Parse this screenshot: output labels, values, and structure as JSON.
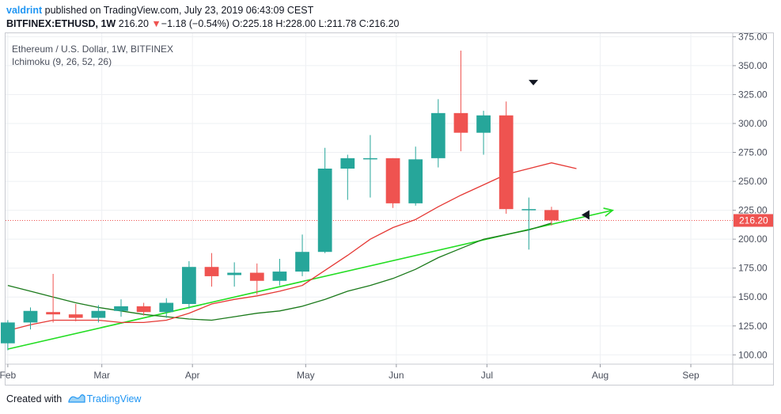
{
  "header": {
    "user": "valdrint",
    "published_text": "published on TradingView.com, July 23, 2019 06:43:09 CEST",
    "symbol": "BITFINEX:ETHUSD, 1W",
    "last_price": "216.20",
    "change_arrow": "▼",
    "change": "−1.18 (−0.54%)",
    "ohlc": "O:225.18 H:228.00 L:211.78 C:216.20"
  },
  "legend": {
    "title": "Ethereum / U.S. Dollar, 1W, BITFINEX",
    "indicator": "Ichimoku (9, 26, 52, 26)"
  },
  "footer": {
    "created_with": "Created with",
    "brand": "TradingView"
  },
  "colors": {
    "up": "#26a69a",
    "down": "#ef5350",
    "conversion_line": "#e53935",
    "base_line": "#1b7a1b",
    "trendline": "#22dd22",
    "price_line": "#ef5350",
    "grid": "#eef0f3"
  },
  "chart_data": {
    "type": "candlestick",
    "y_axis": {
      "min": 92,
      "max": 378,
      "ticks": [
        100,
        125,
        150,
        175,
        200,
        225,
        250,
        275,
        300,
        325,
        350,
        375
      ],
      "tick_labels": [
        "100.00",
        "125.00",
        "150.00",
        "175.00",
        "200.00",
        "225.00",
        "250.00",
        "275.00",
        "300.00",
        "325.00",
        "350.00",
        "375.00"
      ]
    },
    "x_axis": {
      "min": -0.1,
      "max": 32,
      "ticks": [
        0,
        4.15,
        8.15,
        13.15,
        17.15,
        21.15,
        26.15,
        30.15
      ],
      "tick_labels": [
        "Feb",
        "Mar",
        "Apr",
        "May",
        "Jun",
        "Jul",
        "Aug",
        "Sep"
      ]
    },
    "candles": [
      {
        "o": 110,
        "h": 130,
        "l": 104,
        "c": 128
      },
      {
        "o": 128,
        "h": 141,
        "l": 122,
        "c": 138
      },
      {
        "o": 137,
        "h": 170,
        "l": 128,
        "c": 135
      },
      {
        "o": 135,
        "h": 144,
        "l": 129,
        "c": 132
      },
      {
        "o": 132,
        "h": 143,
        "l": 128,
        "c": 138
      },
      {
        "o": 138,
        "h": 148,
        "l": 133,
        "c": 142
      },
      {
        "o": 142,
        "h": 145,
        "l": 134,
        "c": 137
      },
      {
        "o": 137,
        "h": 149,
        "l": 132,
        "c": 145
      },
      {
        "o": 144,
        "h": 181,
        "l": 140,
        "c": 176
      },
      {
        "o": 176,
        "h": 188,
        "l": 159,
        "c": 168
      },
      {
        "o": 169,
        "h": 180,
        "l": 159,
        "c": 171
      },
      {
        "o": 171,
        "h": 179,
        "l": 152,
        "c": 164
      },
      {
        "o": 164,
        "h": 183,
        "l": 160,
        "c": 172
      },
      {
        "o": 172,
        "h": 204,
        "l": 168,
        "c": 189
      },
      {
        "o": 189,
        "h": 279,
        "l": 188,
        "c": 261
      },
      {
        "o": 261,
        "h": 273,
        "l": 234,
        "c": 270
      },
      {
        "o": 270,
        "h": 290,
        "l": 236,
        "c": 270
      },
      {
        "o": 270,
        "h": 270,
        "l": 227,
        "c": 231
      },
      {
        "o": 231,
        "h": 280,
        "l": 229,
        "c": 269
      },
      {
        "o": 270,
        "h": 321,
        "l": 262,
        "c": 309
      },
      {
        "o": 309,
        "h": 363,
        "l": 276,
        "c": 292
      },
      {
        "o": 292,
        "h": 311,
        "l": 273,
        "c": 307
      },
      {
        "o": 307,
        "h": 319,
        "l": 222,
        "c": 226
      },
      {
        "o": 226,
        "h": 236,
        "l": 191,
        "c": 226
      },
      {
        "o": 225.18,
        "h": 228,
        "l": 211.78,
        "c": 216.2
      }
    ],
    "conversion_line": [
      [
        0,
        121
      ],
      [
        1,
        126
      ],
      [
        2,
        130
      ],
      [
        4,
        130
      ],
      [
        5,
        128
      ],
      [
        6,
        128
      ],
      [
        7,
        130
      ],
      [
        8,
        136
      ],
      [
        9,
        144
      ],
      [
        10,
        148
      ],
      [
        11,
        151
      ],
      [
        12,
        155
      ],
      [
        13,
        160
      ],
      [
        14,
        173
      ],
      [
        15,
        186
      ],
      [
        16,
        200
      ],
      [
        17,
        210
      ],
      [
        18,
        217
      ],
      [
        19,
        228
      ],
      [
        20,
        238
      ],
      [
        21,
        247
      ],
      [
        22,
        256
      ],
      [
        23,
        261
      ],
      [
        24,
        266
      ],
      [
        25.1,
        261
      ]
    ],
    "base_line": [
      [
        0,
        160
      ],
      [
        1,
        155
      ],
      [
        2,
        150
      ],
      [
        3,
        145
      ],
      [
        4,
        141
      ],
      [
        5,
        138
      ],
      [
        6,
        135
      ],
      [
        7,
        133
      ],
      [
        8,
        131
      ],
      [
        9,
        130
      ],
      [
        10,
        133
      ],
      [
        11,
        136
      ],
      [
        12,
        138
      ],
      [
        13,
        142
      ],
      [
        14,
        148
      ],
      [
        15,
        155
      ],
      [
        16,
        160
      ],
      [
        17,
        166
      ],
      [
        18,
        174
      ],
      [
        19,
        184
      ],
      [
        20,
        192
      ],
      [
        21,
        200
      ],
      [
        22,
        204
      ],
      [
        23,
        208
      ],
      [
        24,
        214
      ]
    ],
    "trendline": [
      [
        0,
        105
      ],
      [
        26.7,
        225
      ]
    ],
    "markers": [
      {
        "x": 23.2,
        "y": 335,
        "shape": "down"
      },
      {
        "x": 25.5,
        "y": 221,
        "shape": "left"
      }
    ],
    "current_price": 216.2,
    "current_price_label": "216.20"
  }
}
